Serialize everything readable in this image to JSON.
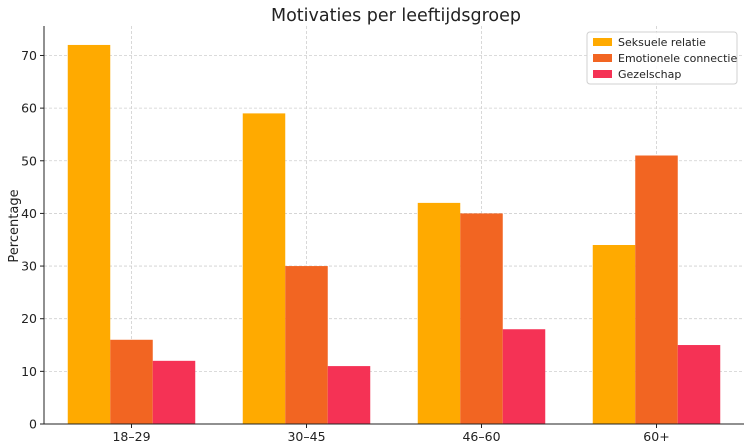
{
  "chart_data": {
    "type": "bar",
    "title": "Motivaties per leeftijdsgroep",
    "xlabel": "",
    "ylabel": "Percentage",
    "categories": [
      "18–29",
      "30–45",
      "46–60",
      "60+"
    ],
    "series": [
      {
        "name": "Seksuele relatie",
        "values": [
          72,
          59,
          42,
          34
        ],
        "color": "#FFAA00"
      },
      {
        "name": "Emotionele connectie",
        "values": [
          16,
          30,
          40,
          51
        ],
        "color": "#F26522"
      },
      {
        "name": "Gezelschap",
        "values": [
          12,
          11,
          18,
          15
        ],
        "color": "#F53255"
      }
    ],
    "ylim": [
      0,
      75.6
    ],
    "yticks": [
      0,
      10,
      20,
      30,
      40,
      50,
      60,
      70
    ],
    "grid": true,
    "legend_position": "top-right"
  }
}
